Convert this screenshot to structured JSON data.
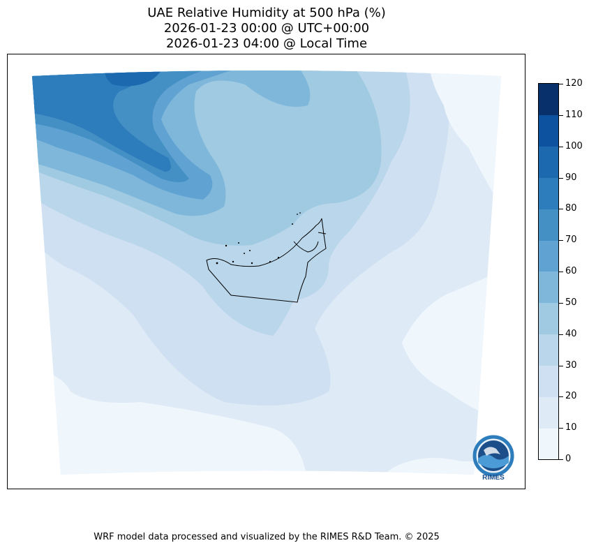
{
  "title": {
    "line1": "UAE Relative Humidity at 500 hPa (%)",
    "line2": "2026-01-23 00:00 @ UTC+00:00",
    "line3": "2026-01-23 04:00 @ Local Time"
  },
  "colorbar": {
    "levels": [
      0,
      10,
      20,
      30,
      40,
      50,
      60,
      70,
      80,
      90,
      100,
      110,
      120
    ],
    "tick_labels": [
      "0",
      "10",
      "20",
      "30",
      "40",
      "50",
      "60",
      "70",
      "80",
      "90",
      "100",
      "110",
      "120"
    ],
    "colors": [
      "#eff6fc",
      "#deeaf6",
      "#cfe0f2",
      "#bad6ea",
      "#9fcae1",
      "#7fb7db",
      "#60a3d2",
      "#4490c5",
      "#2d7cbb",
      "#1c69b0",
      "#0c529e",
      "#08306b"
    ]
  },
  "map": {
    "variable": "Relative Humidity",
    "level": "500 hPa",
    "units": "%",
    "logo": {
      "text": "RIMES",
      "ring_text": "Regional Integrated Multi-Hazard Early Warning System"
    }
  },
  "footer": {
    "credit": "WRF model data processed and visualized by the RIMES R&D Team. © 2025"
  }
}
